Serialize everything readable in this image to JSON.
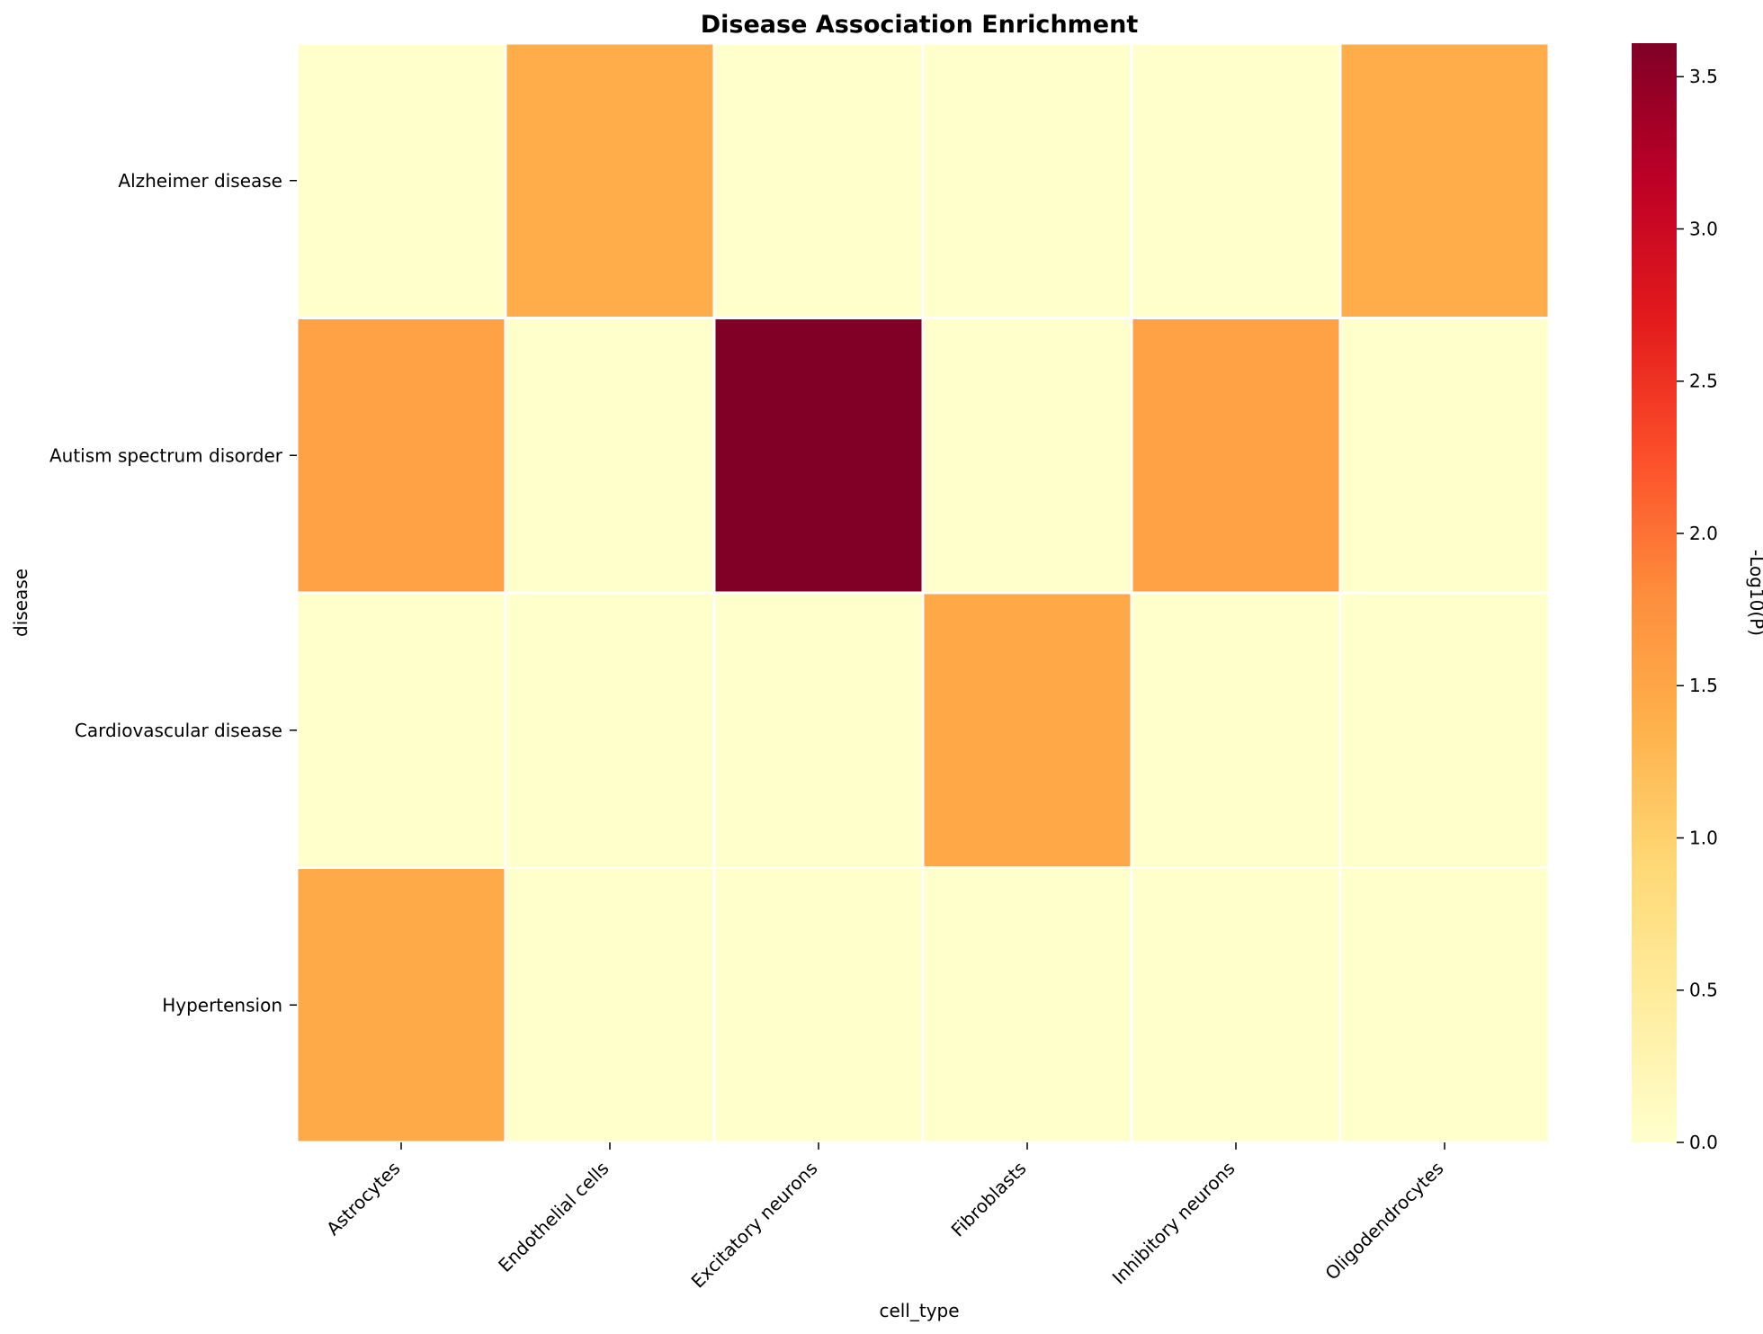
{
  "chart_data": {
    "type": "heatmap",
    "title": "Disease Association Enrichment",
    "xlabel": "cell_type",
    "ylabel": "disease",
    "x_categories": [
      "Astrocytes",
      "Endothelial cells",
      "Excitatory neurons",
      "Fibroblasts",
      "Inhibitory neurons",
      "Oligodendrocytes"
    ],
    "y_categories": [
      "Alzheimer disease",
      "Autism spectrum disorder",
      "Cardiovascular disease",
      "Hypertension"
    ],
    "values": [
      [
        0.0,
        1.42,
        0.0,
        0.0,
        0.0,
        1.42
      ],
      [
        1.55,
        0.0,
        3.61,
        0.0,
        1.55,
        0.0
      ],
      [
        0.0,
        0.0,
        0.0,
        1.48,
        0.0,
        0.0
      ],
      [
        1.45,
        0.0,
        0.0,
        0.0,
        0.0,
        0.0
      ]
    ],
    "colormap": "YlOrRd",
    "colorbar": {
      "label": "-Log10(P)",
      "range": [
        0.0,
        3.61
      ],
      "ticks": [
        "0.0",
        "0.5",
        "1.0",
        "1.5",
        "2.0",
        "2.5",
        "3.0",
        "3.5"
      ],
      "tick_values": [
        0.0,
        0.5,
        1.0,
        1.5,
        2.0,
        2.5,
        3.0,
        3.5
      ]
    },
    "cell_border_color": "#ffffff",
    "grid": false
  }
}
